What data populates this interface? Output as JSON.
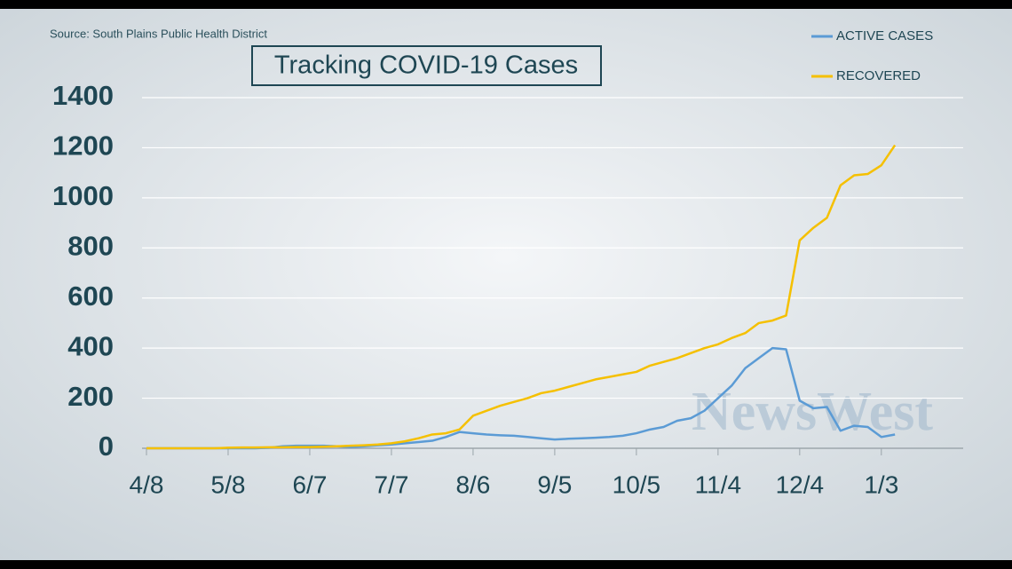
{
  "chart_data": {
    "type": "line",
    "title": "Tracking COVID-19 Cases",
    "source": "Source: South Plains Public Health District",
    "watermark": "NewsWest",
    "categories": [
      "4/8",
      null,
      null,
      null,
      null,
      null,
      "5/8",
      null,
      null,
      null,
      null,
      null,
      "6/7",
      null,
      null,
      null,
      null,
      null,
      "7/7",
      null,
      null,
      null,
      null,
      null,
      "8/6",
      null,
      null,
      null,
      null,
      null,
      "9/5",
      null,
      null,
      null,
      null,
      null,
      "10/5",
      null,
      null,
      null,
      null,
      null,
      "11/4",
      null,
      null,
      null,
      null,
      null,
      "12/4",
      null,
      null,
      null,
      null,
      null,
      "1/3",
      null
    ],
    "series": [
      {
        "name": "ACTIVE CASES",
        "color": "#5b9bd5",
        "values": [
          0,
          0,
          0,
          0,
          0,
          0,
          0,
          0,
          0,
          2,
          8,
          10,
          10,
          10,
          8,
          5,
          8,
          12,
          15,
          20,
          25,
          30,
          45,
          65,
          60,
          55,
          52,
          50,
          45,
          40,
          35,
          38,
          40,
          42,
          45,
          50,
          60,
          75,
          85,
          110,
          120,
          150,
          200,
          250,
          320,
          360,
          400,
          395,
          190,
          160,
          165,
          70,
          90,
          85,
          45,
          55
        ]
      },
      {
        "name": "RECOVERED",
        "color": "#f5c000",
        "values": [
          0,
          0,
          0,
          0,
          0,
          0,
          2,
          3,
          3,
          4,
          4,
          5,
          5,
          6,
          8,
          10,
          12,
          15,
          20,
          28,
          40,
          55,
          60,
          75,
          130,
          150,
          170,
          185,
          200,
          220,
          230,
          245,
          260,
          275,
          285,
          295,
          305,
          330,
          345,
          360,
          380,
          400,
          415,
          440,
          460,
          500,
          510,
          530,
          830,
          880,
          920,
          1050,
          1090,
          1095,
          1130,
          1210
        ]
      }
    ],
    "ylim": [
      0,
      1400
    ],
    "yticks": [
      0,
      200,
      400,
      600,
      800,
      1000,
      1200,
      1400
    ],
    "grid": true,
    "legend": "top-right"
  }
}
